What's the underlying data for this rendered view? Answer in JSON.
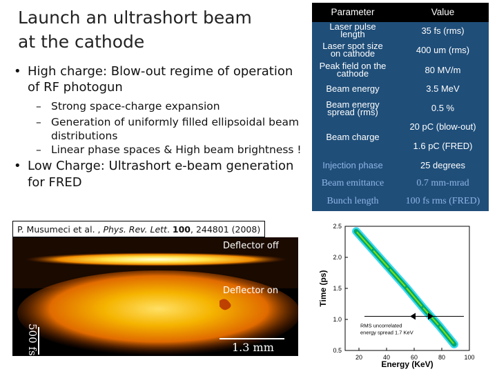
{
  "slide": {
    "title_line1": "Launch an ultrashort beam",
    "title_line2": "at the cathode",
    "bullet1": "High charge: Blow-out regime of operation of RF photogun",
    "sub1": "Strong space-charge expansion",
    "sub2": "Generation of uniformly filled ellipsoidal beam distributions",
    "sub3": "Linear phase spaces & High beam brightness !",
    "bullet2": "Low Charge: Ultrashort e-beam generation for FRED",
    "bullet_glyph": "•",
    "dash_glyph": "–"
  },
  "table": {
    "header": {
      "parameter": "Parameter",
      "value": "Value"
    },
    "rows": [
      {
        "param_l1": "Laser pulse",
        "param_l2": "length",
        "value": "35 fs (rms)"
      },
      {
        "param_l1": "Laser spot size",
        "param_l2": "on cathode",
        "value": "400 um (rms)"
      },
      {
        "param_l1": "Peak field on the",
        "param_l2": "cathode",
        "value": "80 MV/m"
      },
      {
        "param": "Beam energy",
        "value": "3.5 MeV"
      },
      {
        "param_l1": "Beam energy",
        "param_l2": "spread (rms)",
        "value": "0.5 %"
      },
      {
        "param": "Beam charge",
        "value_l1": "20 pC (blow-out)",
        "value_l2": "1.6 pC (FRED)"
      },
      {
        "param": "Injection phase",
        "value": "25 degrees"
      },
      {
        "param": "Beam emittance",
        "value": "0.7 mm-mrad"
      },
      {
        "param": "Bunch length",
        "value": "100 fs rms (FRED)"
      }
    ]
  },
  "reference": {
    "authors": "P. Musumeci et al. , ",
    "journal": "Phys. Rev. Lett",
    "sep": ". ",
    "volume": "100",
    "pages": ", 244801 (2008)"
  },
  "photo": {
    "label_off": "Deflector off",
    "label_on": "Deflector on",
    "scale_horizontal": "1.3 mm",
    "scale_vertical": "500 fs"
  },
  "chart_data": {
    "type": "scatter",
    "xlabel": "Energy (KeV)",
    "ylabel": "Time (ps)",
    "xlim": [
      10,
      100
    ],
    "ylim": [
      0.5,
      2.5
    ],
    "x_ticks": [
      "20",
      "40",
      "60",
      "80",
      "100"
    ],
    "y_ticks": [
      "0.5",
      "1.0",
      "1.5",
      "2.0",
      "2.5"
    ],
    "x_tick_values": [
      20,
      40,
      60,
      80,
      100
    ],
    "y_tick_values": [
      0.5,
      1.0,
      1.5,
      2.0,
      2.5
    ],
    "series": [
      {
        "points": [
          [
            18,
            2.42
          ],
          [
            30,
            2.12
          ],
          [
            42,
            1.82
          ],
          [
            54,
            1.52
          ],
          [
            66,
            1.2
          ],
          [
            78,
            0.9
          ],
          [
            89,
            0.6
          ]
        ]
      }
    ],
    "annotation": "RMS uncorrelated energy spread 1.7 KeV",
    "annotation_marker_x": [
      57,
      74
    ],
    "annotation_marker_y": 1.05,
    "colors": {
      "band_core": "#00a86b",
      "band_edge": "#22d3ee",
      "band_glow": "#9be800"
    }
  }
}
